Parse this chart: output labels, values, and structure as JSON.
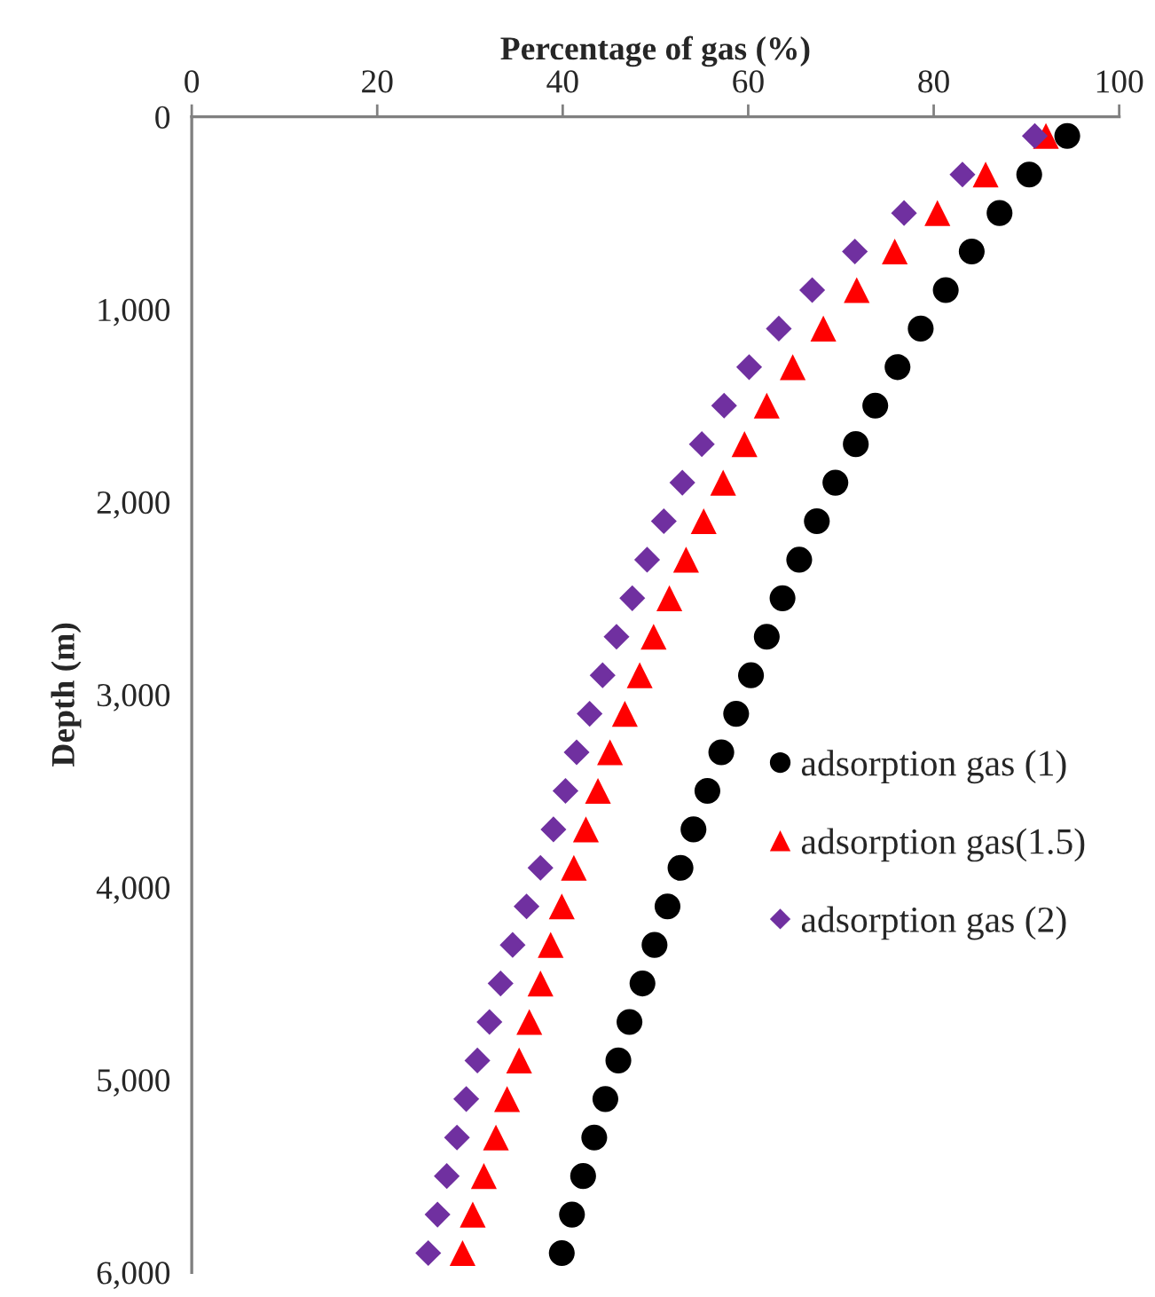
{
  "chart_data": {
    "type": "scatter",
    "xlabel": "Percentage of gas (%)",
    "ylabel": "Depth (m)",
    "xlim": [
      0,
      100
    ],
    "xticks": [
      0,
      20,
      40,
      60,
      80,
      100
    ],
    "ylim": [
      6000,
      0
    ],
    "yticks": [
      0,
      {
        "value": 1000,
        "label": "1,000"
      },
      {
        "value": 2000,
        "label": "2,000"
      },
      {
        "value": 3000,
        "label": "3,000"
      },
      {
        "value": 4000,
        "label": "4,000"
      },
      {
        "value": 5000,
        "label": "5,000"
      },
      {
        "value": 6000,
        "label": "6,000"
      }
    ],
    "grid": false,
    "legend": "right",
    "series": [
      {
        "name": "adsorption gas (1)",
        "color": "#000000",
        "marker": "circle",
        "x": [
          94.4,
          90.3,
          87.1,
          84.1,
          81.3,
          78.6,
          76.1,
          73.7,
          71.6,
          69.4,
          67.4,
          65.5,
          63.7,
          62.0,
          60.3,
          58.7,
          57.1,
          55.6,
          54.1,
          52.7,
          51.3,
          49.9,
          48.6,
          47.2,
          46.0,
          44.6,
          43.4,
          42.2,
          41.0,
          39.9
        ],
        "values": [
          100,
          300,
          500,
          700,
          900,
          1100,
          1300,
          1500,
          1700,
          1900,
          2100,
          2300,
          2500,
          2700,
          2900,
          3100,
          3300,
          3500,
          3700,
          3900,
          4100,
          4300,
          4500,
          4700,
          4900,
          5100,
          5300,
          5500,
          5700,
          5900
        ]
      },
      {
        "name": "adsorption gas(1.5)",
        "color": "#ff0000",
        "marker": "triangle",
        "x": [
          92.1,
          85.6,
          80.4,
          75.8,
          71.7,
          68.1,
          64.8,
          62.0,
          59.6,
          57.3,
          55.2,
          53.3,
          51.5,
          49.8,
          48.3,
          46.7,
          45.1,
          43.8,
          42.5,
          41.2,
          39.9,
          38.7,
          37.6,
          36.4,
          35.3,
          34.0,
          32.8,
          31.5,
          30.3,
          29.2
        ],
        "values": [
          100,
          300,
          500,
          700,
          900,
          1100,
          1300,
          1500,
          1700,
          1900,
          2100,
          2300,
          2500,
          2700,
          2900,
          3100,
          3300,
          3500,
          3700,
          3900,
          4100,
          4300,
          4500,
          4700,
          4900,
          5100,
          5300,
          5500,
          5700,
          5900
        ]
      },
      {
        "name": "adsorption gas (2)",
        "color": "#7030a0",
        "marker": "diamond",
        "x": [
          90.9,
          83.1,
          76.8,
          71.5,
          66.9,
          63.3,
          60.1,
          57.4,
          55.0,
          52.9,
          50.9,
          49.1,
          47.5,
          45.8,
          44.3,
          42.9,
          41.5,
          40.3,
          39.0,
          37.6,
          36.1,
          34.6,
          33.3,
          32.1,
          30.8,
          29.6,
          28.6,
          27.5,
          26.5,
          25.5
        ],
        "values": [
          100,
          300,
          500,
          700,
          900,
          1100,
          1300,
          1500,
          1700,
          1900,
          2100,
          2300,
          2500,
          2700,
          2900,
          3100,
          3300,
          3500,
          3700,
          3900,
          4100,
          4300,
          4500,
          4700,
          4900,
          5100,
          5300,
          5500,
          5700,
          5900
        ]
      }
    ]
  }
}
